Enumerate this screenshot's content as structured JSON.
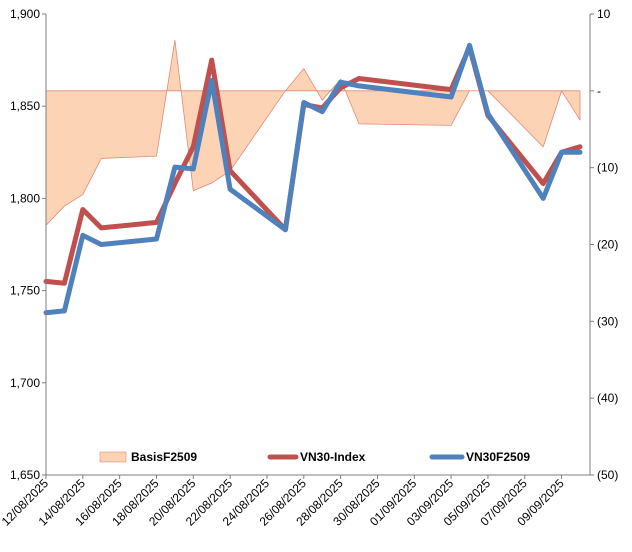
{
  "chart_data": {
    "type": "line",
    "title": "",
    "xlabel": "",
    "ylabel": "",
    "x_tick_labels": [
      "12/08/2025",
      "14/08/2025",
      "16/08/2025",
      "18/08/2025",
      "20/08/2025",
      "22/08/2025",
      "24/08/2025",
      "26/08/2025",
      "28/08/2025",
      "30/08/2025",
      "01/09/2025",
      "03/09/2025",
      "05/09/2025",
      "07/09/2025",
      "09/09/2025"
    ],
    "y_left": {
      "min": 1650,
      "max": 1900,
      "ticks": [
        "1,650",
        "1,700",
        "1,750",
        "1,800",
        "1,850",
        "1,900"
      ]
    },
    "y_right": {
      "min": -50,
      "max": 10,
      "ticks": [
        "10",
        "-",
        "(10)",
        "(20)",
        "(30)",
        "(40)",
        "(50)"
      ]
    },
    "legend_position": "bottom",
    "grid": false,
    "series": [
      {
        "name": "BasisF2509",
        "type": "area",
        "axis": "right",
        "color": "#fcd3b5",
        "edge_color": "#e08a76",
        "points": [
          [
            "12/08/2025",
            -17.5
          ],
          [
            "13/08/2025",
            -15.0
          ],
          [
            "14/08/2025",
            -13.5
          ],
          [
            "15/08/2025",
            -8.8
          ],
          [
            "18/08/2025",
            -8.5
          ],
          [
            "19/08/2025",
            6.6
          ],
          [
            "20/08/2025",
            -13.0
          ],
          [
            "21/08/2025",
            -12.0
          ],
          [
            "22/08/2025",
            -10.4
          ],
          [
            "25/08/2025",
            0.0
          ],
          [
            "26/08/2025",
            2.9
          ],
          [
            "27/08/2025",
            -1.2
          ],
          [
            "28/08/2025",
            1.5
          ],
          [
            "29/08/2025",
            -4.3
          ],
          [
            "03/09/2025",
            -4.5
          ],
          [
            "04/09/2025",
            0.0
          ],
          [
            "05/09/2025",
            0.0
          ],
          [
            "08/09/2025",
            -7.3
          ],
          [
            "09/09/2025",
            0.0
          ],
          [
            "10/09/2025",
            -3.8
          ]
        ]
      },
      {
        "name": "VN30-Index",
        "type": "line",
        "axis": "left",
        "color": "#c0504d",
        "points": [
          [
            "12/08/2025",
            1755
          ],
          [
            "13/08/2025",
            1754
          ],
          [
            "14/08/2025",
            1794
          ],
          [
            "15/08/2025",
            1784
          ],
          [
            "18/08/2025",
            1787
          ],
          [
            "19/08/2025",
            1808
          ],
          [
            "20/08/2025",
            1828
          ],
          [
            "21/08/2025",
            1875
          ],
          [
            "22/08/2025",
            1815
          ],
          [
            "25/08/2025",
            1783
          ],
          [
            "26/08/2025",
            1851
          ],
          [
            "27/08/2025",
            1849
          ],
          [
            "28/08/2025",
            1860
          ],
          [
            "29/08/2025",
            1865
          ],
          [
            "03/09/2025",
            1859
          ],
          [
            "04/09/2025",
            1882
          ],
          [
            "05/09/2025",
            1845
          ],
          [
            "08/09/2025",
            1808
          ],
          [
            "09/09/2025",
            1825
          ],
          [
            "10/09/2025",
            1828
          ]
        ]
      },
      {
        "name": "VN30F2509",
        "type": "line",
        "axis": "left",
        "color": "#4f81bd",
        "points": [
          [
            "12/08/2025",
            1738
          ],
          [
            "13/08/2025",
            1739
          ],
          [
            "14/08/2025",
            1780
          ],
          [
            "15/08/2025",
            1775
          ],
          [
            "18/08/2025",
            1778
          ],
          [
            "19/08/2025",
            1817
          ],
          [
            "20/08/2025",
            1816
          ],
          [
            "21/08/2025",
            1864
          ],
          [
            "22/08/2025",
            1805
          ],
          [
            "25/08/2025",
            1783
          ],
          [
            "26/08/2025",
            1852
          ],
          [
            "27/08/2025",
            1847
          ],
          [
            "28/08/2025",
            1863
          ],
          [
            "29/08/2025",
            1861
          ],
          [
            "03/09/2025",
            1855
          ],
          [
            "04/09/2025",
            1883
          ],
          [
            "05/09/2025",
            1846
          ],
          [
            "08/09/2025",
            1800
          ],
          [
            "09/09/2025",
            1825
          ],
          [
            "10/09/2025",
            1825
          ]
        ]
      }
    ]
  },
  "colors": {
    "axis": "#7f7f7f",
    "background": "#ffffff"
  }
}
